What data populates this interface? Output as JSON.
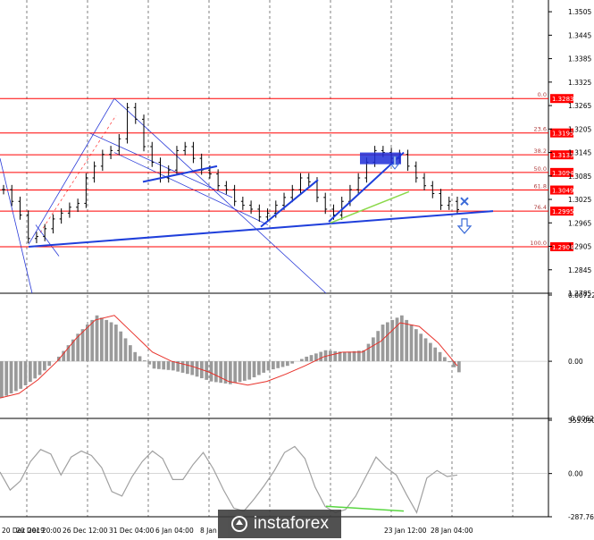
{
  "watermark": {
    "text": "instaforex"
  },
  "chart_data": [
    {
      "type": "candlestick",
      "name": "price",
      "ylim": [
        1.2785,
        1.3535
      ],
      "yticks": [
        "1.3505",
        "1.3445",
        "1.3385",
        "1.3325",
        "1.3265",
        "1.3205",
        "1.3145",
        "1.3085",
        "1.3025",
        "1.2965",
        "1.2905",
        "1.2845",
        "1.2785"
      ],
      "xticks": [
        "20 Dec 2019",
        "20 Dec 20:00",
        "26 Dec 12:00",
        "31 Dec 04:00",
        "6 Jan 04:00",
        "8 Jan",
        "23 Jan 12:00",
        "28 Jan 04:00"
      ],
      "close": [
        1.305,
        1.302,
        1.2985,
        1.2925,
        1.293,
        1.295,
        1.2975,
        1.299,
        1.3005,
        1.3015,
        1.308,
        1.311,
        1.314,
        1.315,
        1.318,
        1.326,
        1.323,
        1.316,
        1.312,
        1.308,
        1.31,
        1.315,
        1.316,
        1.313,
        1.31,
        1.309,
        1.306,
        1.305,
        1.302,
        1.301,
        1.3,
        1.298,
        1.299,
        1.301,
        1.303,
        1.305,
        1.308,
        1.307,
        1.303,
        1.3,
        1.2985,
        1.302,
        1.305,
        1.308,
        1.312,
        1.315,
        1.3145,
        1.313,
        1.314,
        1.311,
        1.308,
        1.306,
        1.304,
        1.301,
        1.302,
        1.2999
      ],
      "fib_levels": [
        {
          "label": "0.0",
          "price": "1.3283",
          "value": 1.3283
        },
        {
          "label": "23.6",
          "price": "1.3195",
          "value": 1.3195
        },
        {
          "label": "38.2",
          "price": "1.3139",
          "value": 1.3139
        },
        {
          "label": "50.0",
          "price": "1.3094",
          "value": 1.3094
        },
        {
          "label": "61.8",
          "price": "1.3049",
          "value": 1.3049
        },
        {
          "label": "76.4",
          "price": "1.2995",
          "value": 1.2995
        },
        {
          "label": "100.0",
          "price": "1.2904",
          "value": 1.2904
        }
      ],
      "colors": {
        "level": "#ff0000",
        "trendline": "#1f3fdb",
        "channel": "#2a3bd8",
        "rising": "#8bd94a",
        "arrow": "#3a6ad8",
        "candle": "#000000"
      }
    },
    {
      "type": "histogram",
      "name": "MACD",
      "ylim": [
        -0.00623,
        0.00722
      ],
      "yticks": [
        "0.00722",
        "0.00",
        "-0.00623"
      ],
      "values": [
        -0.004,
        -0.003,
        -0.0015,
        0.0005,
        0.003,
        0.005,
        0.004,
        0.001,
        -0.0008,
        -0.001,
        -0.0015,
        -0.0022,
        -0.0025,
        -0.002,
        -0.001,
        -0.0005,
        0.0005,
        0.0012,
        0.001,
        0.0012,
        0.004,
        0.005,
        0.003,
        0.001,
        -0.0012
      ],
      "signal": [
        -0.004,
        -0.0035,
        -0.002,
        0.0,
        0.0025,
        0.0045,
        0.005,
        0.003,
        0.001,
        0.0,
        -0.0005,
        -0.0012,
        -0.0022,
        -0.0026,
        -0.0022,
        -0.0014,
        -0.0005,
        0.0005,
        0.001,
        0.001,
        0.0022,
        0.0042,
        0.0038,
        0.002,
        -0.0005
      ],
      "colors": {
        "bars": "#9a9a9a",
        "signal": "#e8312a"
      }
    },
    {
      "type": "line",
      "name": "CCI",
      "ylim": [
        -287.767,
        355.0903
      ],
      "yticks": [
        "355.0903",
        "0.00",
        "-287.767"
      ],
      "values": [
        10,
        -110,
        -50,
        80,
        160,
        130,
        -10,
        110,
        150,
        120,
        40,
        -120,
        -150,
        -20,
        80,
        150,
        100,
        -40,
        -40,
        60,
        140,
        30,
        -110,
        -230,
        -250,
        -170,
        -80,
        20,
        140,
        180,
        100,
        -90,
        -220,
        -260,
        -240,
        -150,
        -20,
        110,
        40,
        -10,
        -140,
        -260,
        -30,
        20,
        -20,
        -10
      ],
      "divergence": [
        -218,
        -250
      ],
      "colors": {
        "line": "#a0a0a0",
        "divergence": "#58d640"
      }
    }
  ]
}
